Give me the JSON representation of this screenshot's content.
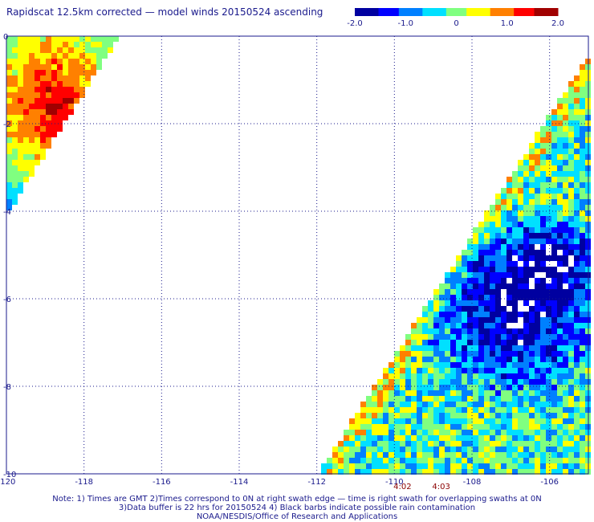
{
  "title": "Rapidscat 12.5km corrected — model winds 20150524 ascending",
  "colorbar": {
    "min": -2.0,
    "max": 2.0,
    "tick_labels": [
      "-2.0",
      "-1.0",
      "0",
      "1.0",
      "2.0"
    ],
    "tick_values": [
      -2.0,
      -1.0,
      0.0,
      1.0,
      2.0
    ],
    "colors": [
      "#0000a0",
      "#0000ff",
      "#0080ff",
      "#00e0ff",
      "#80ff80",
      "#ffff00",
      "#ff8000",
      "#ff0000",
      "#a00000"
    ]
  },
  "map": {
    "lon_range": [
      -120,
      -105
    ],
    "lat_range": [
      -10,
      0
    ],
    "lon_ticks": [
      -120,
      -118,
      -116,
      -114,
      -112,
      -110,
      -108,
      -106
    ],
    "lon_labels": [
      "-120",
      "-118",
      "-116",
      "-114",
      "-112",
      "-110",
      "-108",
      "-106"
    ],
    "lat_ticks": [
      0,
      -2,
      -4,
      -6,
      -8,
      -10
    ],
    "lat_labels": [
      "0",
      "-2",
      "-4",
      "-6",
      "-8",
      "-10"
    ],
    "grid_color": "#1a1a8c",
    "axis_label_color": "#1a1a8c",
    "time_label_color": "#8b0000",
    "time_labels": [
      {
        "text": "4:02",
        "lon": -110.0
      },
      {
        "text": "4:03",
        "lon": -109.0
      }
    ]
  },
  "notes": {
    "line1": "Note: 1) Times are GMT 2)Times correspond to 0N at right swath edge — time is right swath for overlapping swaths at 0N",
    "line2": "3)Data buffer is 22 hrs for 20150524 4) Black barbs indicate possible rain contamination",
    "line3": "NOAA/NESDIS/Office of Research and Applications"
  }
}
